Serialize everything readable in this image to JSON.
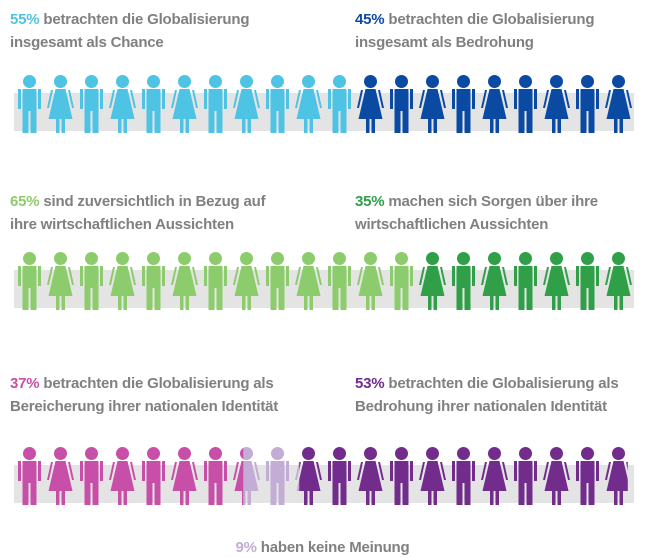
{
  "chart_data": [
    {
      "type": "pictogram",
      "series": [
        {
          "name": "betrachten die Globalisierung insgesamt als Chance",
          "color": "#4fc3e3",
          "values": [
            55
          ],
          "value_labels": [
            "55%"
          ]
        },
        {
          "name": "betrachten die Globalisierung insgesamt als Bedrohung",
          "color": "#0b4aa2",
          "values": [
            45
          ],
          "value_labels": [
            "45%"
          ]
        }
      ]
    },
    {
      "type": "pictogram",
      "series": [
        {
          "name": "sind zuversichtlich in Bezug auf ihre wirtschaftlichen Aussichten",
          "color": "#8dcc6c",
          "values": [
            65
          ],
          "value_labels": [
            "65%"
          ]
        },
        {
          "name": "machen sich Sorgen über ihre wirtschaftlichen Aussichten",
          "color": "#2f9f48",
          "values": [
            35
          ],
          "value_labels": [
            "35%"
          ]
        }
      ]
    },
    {
      "type": "pictogram",
      "series": [
        {
          "name": "betrachten die Globalisierung als Bereicherung ihrer nationalen Identität",
          "color": "#c84fa8",
          "values": [
            37
          ],
          "value_labels": [
            "37%"
          ]
        },
        {
          "name": "haben keine Meinung",
          "color": "#c3acd6",
          "values": [
            9
          ],
          "value_labels": [
            "9%"
          ]
        },
        {
          "name": "betrachten die Globalisierung als Bedrohung ihrer nationalen Identität",
          "color": "#712c8c",
          "values": [
            53
          ],
          "value_labels": [
            "53%"
          ]
        }
      ]
    }
  ]
}
